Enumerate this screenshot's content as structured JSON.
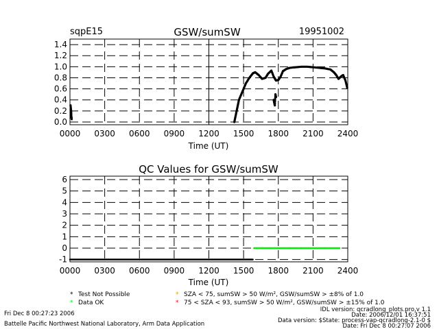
{
  "header": {
    "site": "sqpE15",
    "date": "19951002"
  },
  "chart_data": [
    {
      "type": "scatter",
      "title": "GSW/sumSW",
      "xlabel": "Time (UT)",
      "ylabel": "",
      "xlim": [
        0,
        2400
      ],
      "ylim": [
        -0.05,
        1.5
      ],
      "x_ticks": [
        "0000",
        "0300",
        "0600",
        "0900",
        "1200",
        "1500",
        "1800",
        "2100",
        "2400"
      ],
      "y_ticks": [
        "0.0",
        "0.2",
        "0.4",
        "0.6",
        "0.8",
        "1.0",
        "1.2",
        "1.4"
      ],
      "grid": true,
      "color": "#000000",
      "series": [
        {
          "points": [
            [
              5,
              0.3
            ],
            [
              10,
              0.2
            ],
            [
              12,
              0.1
            ],
            [
              15,
              0.05
            ],
            [
              1420,
              0.0
            ],
            [
              1430,
              0.1
            ],
            [
              1440,
              0.2
            ],
            [
              1450,
              0.3
            ],
            [
              1460,
              0.4
            ],
            [
              1480,
              0.5
            ],
            [
              1500,
              0.6
            ],
            [
              1520,
              0.7
            ],
            [
              1550,
              0.8
            ],
            [
              1580,
              0.88
            ],
            [
              1600,
              0.9
            ],
            [
              1630,
              0.85
            ],
            [
              1660,
              0.78
            ],
            [
              1690,
              0.8
            ],
            [
              1710,
              0.87
            ],
            [
              1740,
              0.93
            ],
            [
              1760,
              0.82
            ],
            [
              1780,
              0.75
            ],
            [
              1800,
              0.76
            ],
            [
              1820,
              0.82
            ],
            [
              1840,
              0.92
            ],
            [
              1870,
              0.96
            ],
            [
              1900,
              0.98
            ],
            [
              1950,
              0.99
            ],
            [
              2000,
              1.0
            ],
            [
              2050,
              1.0
            ],
            [
              2100,
              0.99
            ],
            [
              2150,
              0.98
            ],
            [
              2200,
              0.97
            ],
            [
              2250,
              0.95
            ],
            [
              2280,
              0.9
            ],
            [
              2300,
              0.85
            ],
            [
              2320,
              0.78
            ],
            [
              2340,
              0.82
            ],
            [
              2360,
              0.85
            ],
            [
              2380,
              0.75
            ],
            [
              2395,
              0.62
            ],
            [
              1760,
              0.4
            ],
            [
              1765,
              0.35
            ],
            [
              1770,
              0.3
            ],
            [
              1775,
              0.5
            ],
            [
              1780,
              0.45
            ]
          ]
        }
      ]
    },
    {
      "type": "scatter",
      "title": "QC Values for GSW/sumSW",
      "xlabel": "Time (UT)",
      "ylabel": "",
      "xlim": [
        0,
        2400
      ],
      "ylim": [
        -1.2,
        6.3
      ],
      "x_ticks": [
        "0000",
        "0300",
        "0600",
        "0900",
        "1200",
        "1500",
        "1800",
        "2100",
        "2400"
      ],
      "y_ticks": [
        "-1",
        "0",
        "1",
        "2",
        "3",
        "4",
        "5",
        "6"
      ],
      "grid": true,
      "series": [
        {
          "legend_key": "not_possible",
          "color": "#000000",
          "points": [
            [
              0,
              -1
            ],
            [
              600,
              -1
            ],
            [
              1200,
              -1
            ],
            [
              1580,
              -1
            ]
          ]
        },
        {
          "legend_key": "ok",
          "color": "#00ee00",
          "points": [
            [
              1590,
              0
            ],
            [
              1660,
              0
            ],
            [
              1730,
              0
            ],
            [
              1800,
              0
            ],
            [
              1900,
              0
            ],
            [
              2000,
              0
            ],
            [
              2100,
              0
            ],
            [
              2200,
              0
            ],
            [
              2330,
              0
            ]
          ]
        }
      ]
    }
  ],
  "legend": {
    "not_possible": {
      "symbol": "*",
      "color": "#000000",
      "label": "Test Not Possible"
    },
    "ok": {
      "symbol": "*",
      "color": "#00ee00",
      "label": "Data OK"
    },
    "warn8": {
      "symbol": "*",
      "color": "#e0a000",
      "label": "SZA < 75, sumSW > 50 W/m², GSW/sumSW > ±8% of 1.0"
    },
    "warn15": {
      "symbol": "*",
      "color": "#ff0000",
      "label": "75 < SZA < 93, sumSW > 50 W/m², GSW/sumSW > ±15% of 1.0"
    }
  },
  "footer": {
    "timestamp_left": "Fri Dec  8 00:27:23 2006",
    "credits": "Battelle Pacific Northwest National Laboratory, Arm Data Application",
    "idl_version": "IDL version: qcradlong_plots.pro,v 1.1",
    "idl_date": "Date: 2006/12/01 16:37:51",
    "data_version": "Data version: $State: process-vap-qcradlong-2.1-0 $",
    "data_date": "Date: Fri Dec  8 00:27:07 2006"
  }
}
